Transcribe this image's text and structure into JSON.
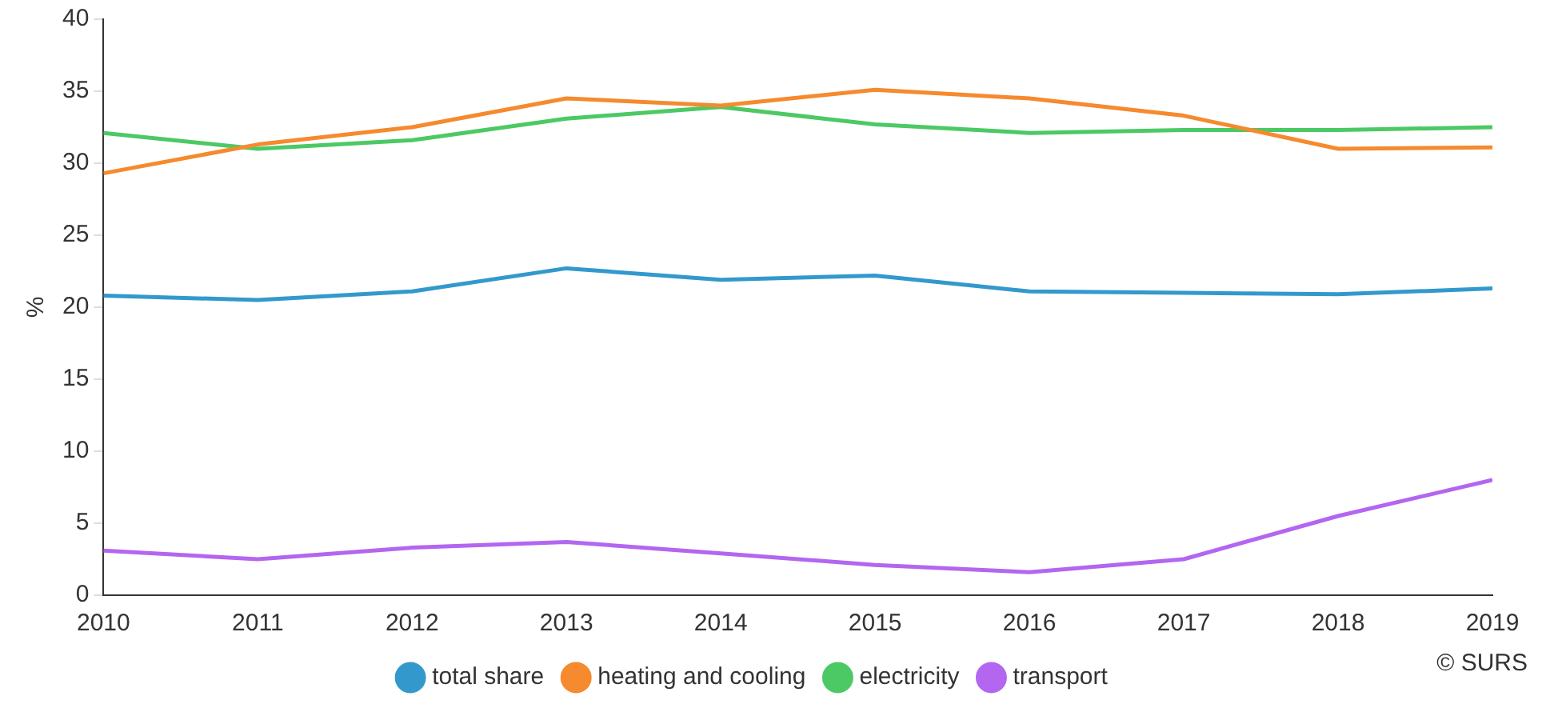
{
  "chart_data": {
    "type": "line",
    "ylabel": "%",
    "x": [
      2010,
      2011,
      2012,
      2013,
      2014,
      2015,
      2016,
      2017,
      2018,
      2019
    ],
    "xlim": [
      2010,
      2019
    ],
    "xticks": [
      2010,
      2011,
      2012,
      2013,
      2014,
      2015,
      2016,
      2017,
      2018,
      2019
    ],
    "ylim": [
      0,
      40
    ],
    "yticks": [
      0,
      5,
      10,
      15,
      20,
      25,
      30,
      35,
      40
    ],
    "grid": false,
    "legend": "bottom",
    "marker": "none",
    "line_style": "solid",
    "series": [
      {
        "name": "total share",
        "color": "#3399cc",
        "values": [
          20.8,
          20.5,
          21.1,
          22.7,
          21.9,
          22.2,
          21.1,
          21.0,
          20.9,
          21.3
        ]
      },
      {
        "name": "heating and cooling",
        "color": "#f58a2e",
        "values": [
          29.3,
          31.3,
          32.5,
          34.5,
          34.0,
          35.1,
          34.5,
          33.3,
          31.0,
          31.1
        ]
      },
      {
        "name": "electricity",
        "color": "#4cc964",
        "values": [
          32.1,
          31.0,
          31.6,
          33.1,
          33.9,
          32.7,
          32.1,
          32.3,
          32.3,
          32.5
        ]
      },
      {
        "name": "transport",
        "color": "#b366f0",
        "values": [
          3.1,
          2.5,
          3.3,
          3.7,
          2.9,
          2.1,
          1.6,
          2.5,
          5.5,
          8.0
        ]
      }
    ],
    "annotations": [
      "© SURS"
    ]
  }
}
